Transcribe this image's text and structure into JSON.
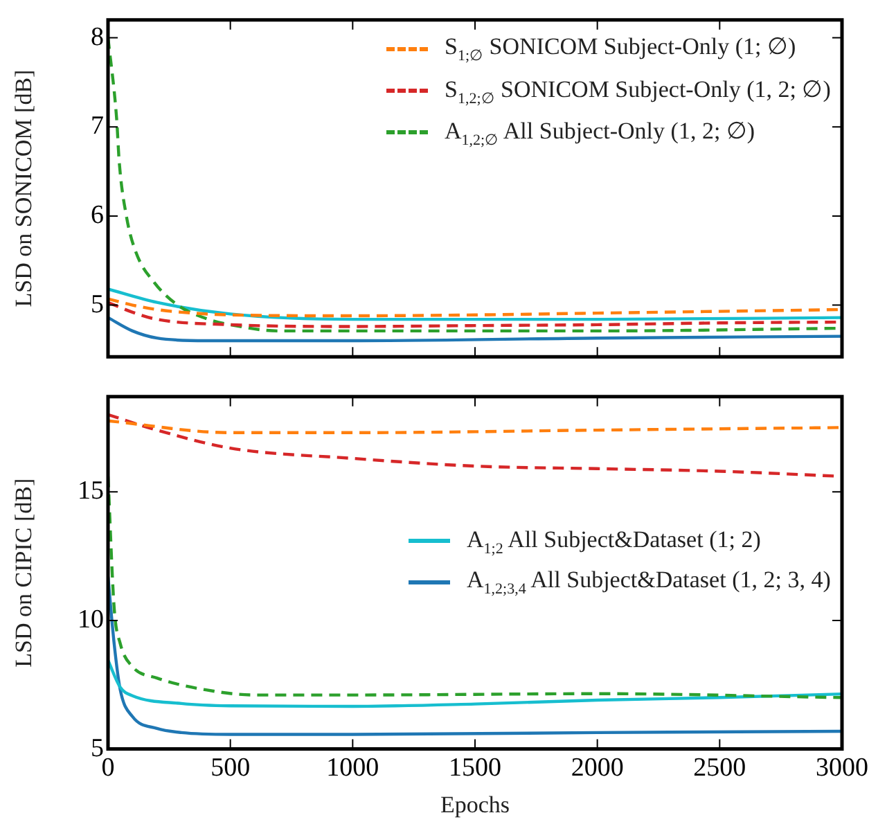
{
  "chart_data": [
    {
      "type": "line",
      "ylabel": "LSD on SONICOM [dB]",
      "xlim": [
        0,
        3000
      ],
      "xticks": [
        0,
        500,
        1000,
        1500,
        2000,
        2500,
        3000
      ],
      "ylim": [
        4.42,
        8.2
      ],
      "yticks": [
        5,
        6,
        7,
        8
      ],
      "tick_labels": "y",
      "legend": "top right",
      "grid": false,
      "marker": "none",
      "series": [
        {
          "name": "S$_{1;∅}$ SONICOM Subject-Only (1; ∅)",
          "color": "#ff7f0e",
          "line_style": "dashed",
          "x": [
            0,
            100,
            200,
            300,
            500,
            1000,
            1500,
            2000,
            2500,
            3000
          ],
          "values": [
            5.07,
            5.0,
            4.95,
            4.92,
            4.89,
            4.88,
            4.89,
            4.91,
            4.93,
            4.95
          ]
        },
        {
          "name": "S$_{1,2;∅}$ SONICOM Subject-Only (1, 2; ∅)",
          "color": "#d62728",
          "line_style": "dashed",
          "x": [
            0,
            100,
            200,
            500,
            1000,
            1500,
            2000,
            2500,
            3000
          ],
          "values": [
            5.03,
            4.92,
            4.84,
            4.78,
            4.76,
            4.77,
            4.78,
            4.8,
            4.81
          ]
        },
        {
          "name": "A$_{1,2;∅}$ All Subject-Only (1, 2; ∅)",
          "color": "#2ca02c",
          "line_style": "dashed",
          "x": [
            0,
            35,
            46,
            75,
            113,
            190,
            285,
            400,
            500,
            700,
            1000,
            2000,
            3000
          ],
          "values": [
            8.0,
            7.1,
            6.6,
            6.0,
            5.6,
            5.25,
            5.0,
            4.85,
            4.78,
            4.71,
            4.71,
            4.71,
            4.74
          ]
        },
        {
          "color": "#17becf",
          "line_style": "solid",
          "x": [
            0,
            200,
            500,
            1000,
            2000,
            3000
          ],
          "values": [
            5.18,
            5.03,
            4.9,
            4.84,
            4.84,
            4.86
          ]
        },
        {
          "color": "#1f77b4",
          "line_style": "solid",
          "x": [
            0,
            100,
            200,
            400,
            1000,
            2000,
            3000
          ],
          "values": [
            4.86,
            4.71,
            4.63,
            4.6,
            4.6,
            4.63,
            4.65
          ]
        }
      ]
    },
    {
      "type": "line",
      "xlabel": "Epochs",
      "ylabel": "LSD on CIPIC [dB]",
      "xlim": [
        0,
        3000
      ],
      "xticks": [
        0,
        500,
        1000,
        1500,
        2000,
        2500,
        3000
      ],
      "ylim": [
        5,
        18.7
      ],
      "yticks": [
        5,
        10,
        15
      ],
      "legend": "right",
      "grid": false,
      "marker": "none",
      "series": [
        {
          "color": "#ff7f0e",
          "line_style": "dashed",
          "x": [
            0,
            500,
            1000,
            2000,
            3000
          ],
          "values": [
            17.76,
            17.3,
            17.3,
            17.4,
            17.5
          ]
        },
        {
          "color": "#d62728",
          "line_style": "dashed",
          "x": [
            0,
            200,
            500,
            1000,
            1500,
            2000,
            2500,
            3000
          ],
          "values": [
            18.0,
            17.4,
            16.7,
            16.3,
            16.0,
            15.9,
            15.8,
            15.6
          ]
        },
        {
          "color": "#2ca02c",
          "line_style": "dashed",
          "x": [
            0,
            25,
            50,
            100,
            200,
            400,
            600,
            1000,
            2000,
            3000
          ],
          "values": [
            15.6,
            10.5,
            9.1,
            8.2,
            7.76,
            7.3,
            7.1,
            7.1,
            7.15,
            7.0
          ]
        },
        {
          "name": "A$_{1;2}$ All Subject&Dataset (1; 2)",
          "color": "#17becf",
          "line_style": "solid",
          "x": [
            0,
            50,
            100,
            300,
            500,
            1000,
            1500,
            2000,
            2500,
            3000
          ],
          "values": [
            8.45,
            7.4,
            7.07,
            6.77,
            6.68,
            6.66,
            6.75,
            6.9,
            7.0,
            7.14
          ]
        },
        {
          "name": "A$_{1,2;3,4}$ All Subject&Dataset (1, 2; 3, 4)",
          "color": "#1f77b4",
          "line_style": "solid",
          "x": [
            0,
            25,
            50,
            100,
            200,
            300,
            500,
            1000,
            2000,
            3000
          ],
          "values": [
            11.7,
            9.1,
            7.3,
            6.26,
            5.8,
            5.64,
            5.57,
            5.57,
            5.64,
            5.69
          ]
        }
      ]
    }
  ]
}
